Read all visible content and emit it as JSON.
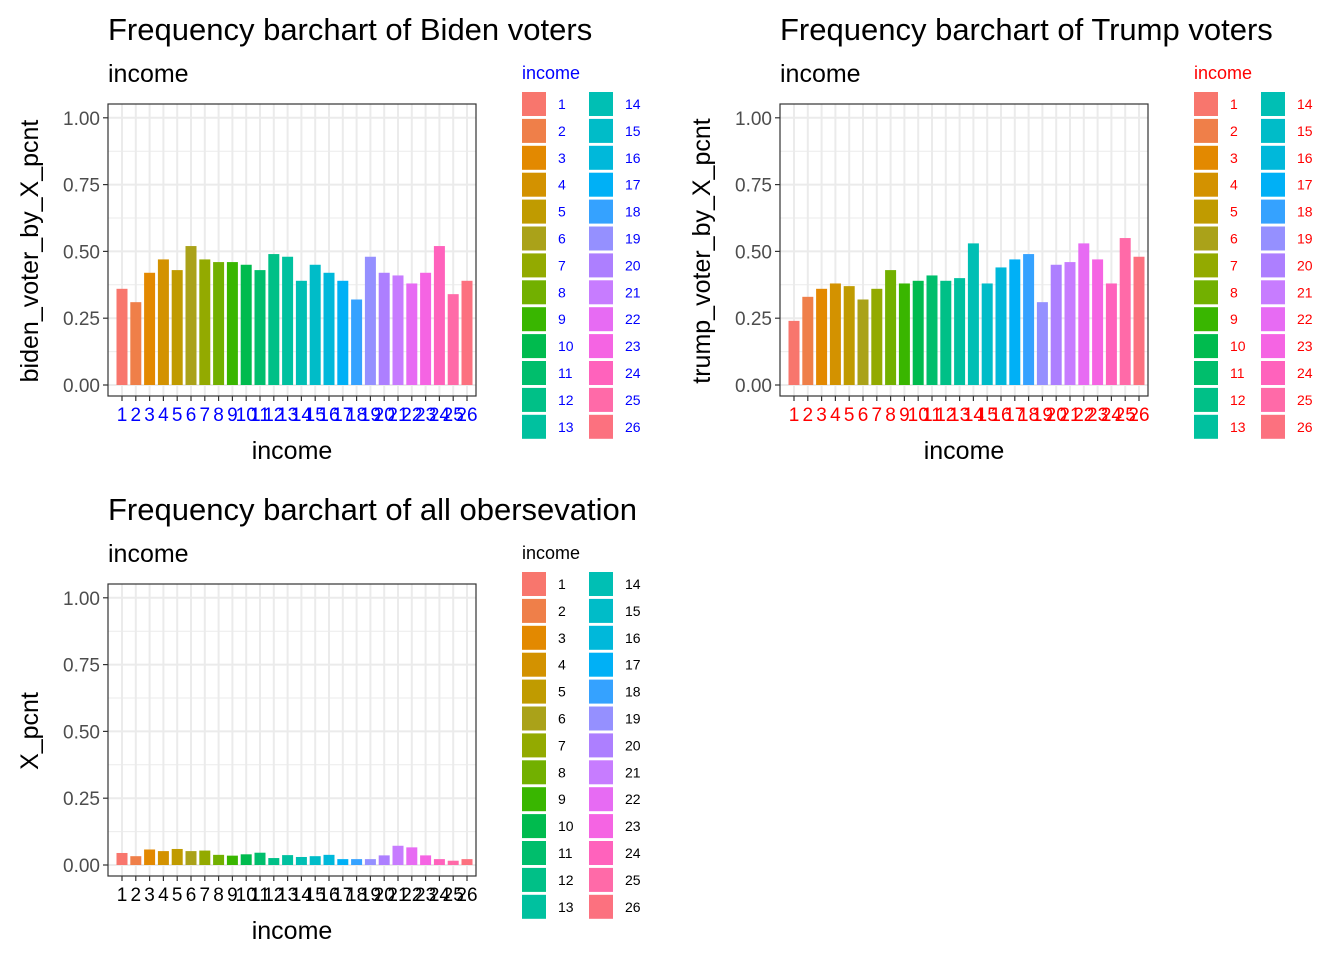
{
  "chart_data": [
    {
      "type": "bar",
      "title": "Frequency barchart of Biden voters",
      "subtitle": "income",
      "xlabel": "income",
      "ylabel": "biden_voter_by_X_pcnt",
      "ylim": [
        0,
        1.0
      ],
      "yticks": [
        "0.00",
        "0.25",
        "0.50",
        "0.75",
        "1.00"
      ],
      "grid": true,
      "legend_title": "income",
      "legend_placement": "right",
      "accent_color": "#0000ff",
      "categories": [
        "1",
        "2",
        "3",
        "4",
        "5",
        "6",
        "7",
        "8",
        "9",
        "10",
        "11",
        "12",
        "13",
        "14",
        "15",
        "16",
        "17",
        "18",
        "19",
        "20",
        "21",
        "22",
        "23",
        "24",
        "25",
        "26"
      ],
      "values": [
        0.36,
        0.31,
        0.42,
        0.47,
        0.43,
        0.52,
        0.47,
        0.46,
        0.46,
        0.45,
        0.43,
        0.49,
        0.48,
        0.39,
        0.45,
        0.42,
        0.39,
        0.32,
        0.48,
        0.42,
        0.41,
        0.38,
        0.42,
        0.52,
        0.34,
        0.39
      ]
    },
    {
      "type": "bar",
      "title": "Frequency barchart of Trump voters",
      "subtitle": "income",
      "xlabel": "income",
      "ylabel": "trump_voter_by_X_pcnt",
      "ylim": [
        0,
        1.0
      ],
      "yticks": [
        "0.00",
        "0.25",
        "0.50",
        "0.75",
        "1.00"
      ],
      "grid": true,
      "legend_title": "income",
      "legend_placement": "right",
      "accent_color": "#ff0000",
      "categories": [
        "1",
        "2",
        "3",
        "4",
        "5",
        "6",
        "7",
        "8",
        "9",
        "10",
        "11",
        "12",
        "13",
        "14",
        "15",
        "16",
        "17",
        "18",
        "19",
        "20",
        "21",
        "22",
        "23",
        "24",
        "25",
        "26"
      ],
      "values": [
        0.24,
        0.33,
        0.36,
        0.38,
        0.37,
        0.32,
        0.36,
        0.43,
        0.38,
        0.39,
        0.41,
        0.39,
        0.4,
        0.53,
        0.38,
        0.44,
        0.47,
        0.49,
        0.31,
        0.45,
        0.46,
        0.53,
        0.47,
        0.38,
        0.55,
        0.48
      ]
    },
    {
      "type": "bar",
      "title": "Frequency barchart of all obersevation",
      "subtitle": "income",
      "xlabel": "income",
      "ylabel": "X_pcnt",
      "ylim": [
        0,
        1.0
      ],
      "yticks": [
        "0.00",
        "0.25",
        "0.50",
        "0.75",
        "1.00"
      ],
      "grid": true,
      "legend_title": "income",
      "legend_placement": "right",
      "accent_color": "#000000",
      "categories": [
        "1",
        "2",
        "3",
        "4",
        "5",
        "6",
        "7",
        "8",
        "9",
        "10",
        "11",
        "12",
        "13",
        "14",
        "15",
        "16",
        "17",
        "18",
        "19",
        "20",
        "21",
        "22",
        "23",
        "24",
        "25",
        "26"
      ],
      "values": [
        0.045,
        0.033,
        0.058,
        0.052,
        0.06,
        0.052,
        0.054,
        0.038,
        0.035,
        0.04,
        0.046,
        0.026,
        0.037,
        0.03,
        0.033,
        0.038,
        0.022,
        0.022,
        0.022,
        0.036,
        0.072,
        0.066,
        0.036,
        0.022,
        0.016,
        0.022
      ]
    }
  ],
  "colors": [
    "#F8766D",
    "#EF7F49",
    "#E38900",
    "#D39200",
    "#C09B00",
    "#AAA219",
    "#93AA00",
    "#72B000",
    "#39B600",
    "#00BB4E",
    "#00BE6C",
    "#00C087",
    "#00C19F",
    "#00BFB4",
    "#00BCC8",
    "#00B8DA",
    "#00B0F6",
    "#35A2FF",
    "#9590FF",
    "#AD7FFF",
    "#C77CFF",
    "#E76BF3",
    "#F564E3",
    "#FF62BC",
    "#FF6AA8",
    "#FC717F"
  ]
}
